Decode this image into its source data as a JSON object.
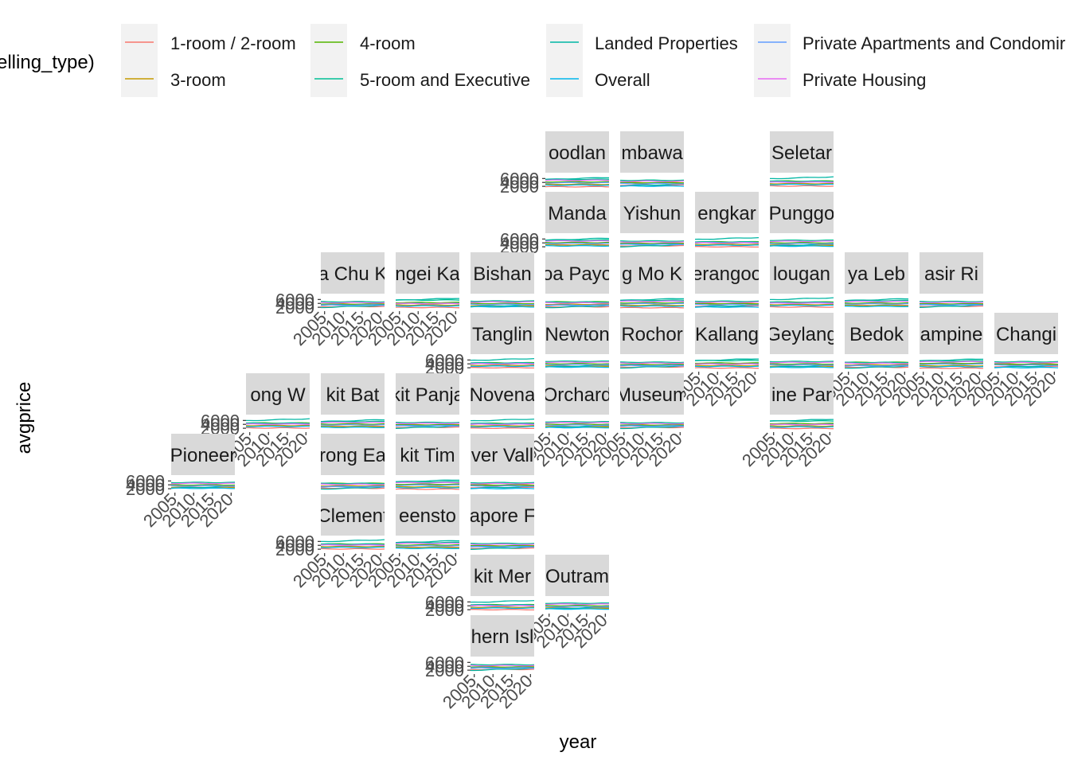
{
  "chart_data": {
    "type": "line",
    "title": "",
    "xlabel": "year",
    "ylabel": "avgprice",
    "legend": {
      "title": "elling_type)",
      "position": "top",
      "entries": [
        {
          "name": "1-room / 2-room",
          "color": "#F8766D"
        },
        {
          "name": "3-room",
          "color": "#C49A00"
        },
        {
          "name": "4-room",
          "color": "#53B400"
        },
        {
          "name": "5-room and Executive",
          "color": "#00C094"
        },
        {
          "name": "Landed Properties",
          "color": "#00B6A3"
        },
        {
          "name": "Overall",
          "color": "#00B6EB"
        },
        {
          "name": "Private Apartments and Condomir",
          "color": "#619CFF"
        },
        {
          "name": "Private Housing",
          "color": "#E76BF3"
        }
      ]
    },
    "x_ticks": [
      "2005",
      "2010",
      "2015",
      "2020"
    ],
    "xlim": [
      2004,
      2021
    ],
    "y_tick_labels": [
      "2000",
      "4000",
      "6000"
    ],
    "ylim": [
      0,
      9000
    ],
    "facet_layout": "geofacet grid of Singapore planning areas",
    "panels": [
      {
        "strip": "oodlan"
      },
      {
        "strip": "mbawa"
      },
      {
        "strip": "Seletar"
      },
      {
        "strip": "Manda"
      },
      {
        "strip": "Yishun"
      },
      {
        "strip": "engkar"
      },
      {
        "strip": "Punggo"
      },
      {
        "strip": "a Chu K"
      },
      {
        "strip": "ngei Ka"
      },
      {
        "strip": "Bishan"
      },
      {
        "strip": "oa Payo"
      },
      {
        "strip": "g Mo K"
      },
      {
        "strip": "erangoo"
      },
      {
        "strip": "lougan"
      },
      {
        "strip": "ya Leb"
      },
      {
        "strip": "asir Ri"
      },
      {
        "strip": "Tanglin"
      },
      {
        "strip": "Newton"
      },
      {
        "strip": "Rochor"
      },
      {
        "strip": "Kallang"
      },
      {
        "strip": "Geylang"
      },
      {
        "strip": "Bedok"
      },
      {
        "strip": "ampine"
      },
      {
        "strip": "Changi"
      },
      {
        "strip": "ong W"
      },
      {
        "strip": "kit Bat"
      },
      {
        "strip": "kit Panja"
      },
      {
        "strip": "Novena"
      },
      {
        "strip": "Orchard"
      },
      {
        "strip": "Museum"
      },
      {
        "strip": "ine Par"
      },
      {
        "strip": "Pioneer"
      },
      {
        "strip": "rong Ea"
      },
      {
        "strip": "kit Tim"
      },
      {
        "strip": "ver Vall"
      },
      {
        "strip": "Clement"
      },
      {
        "strip": "eensto"
      },
      {
        "strip": "apore F"
      },
      {
        "strip": "kit Mer"
      },
      {
        "strip": "Outram"
      },
      {
        "strip": "hern Isl"
      }
    ]
  }
}
